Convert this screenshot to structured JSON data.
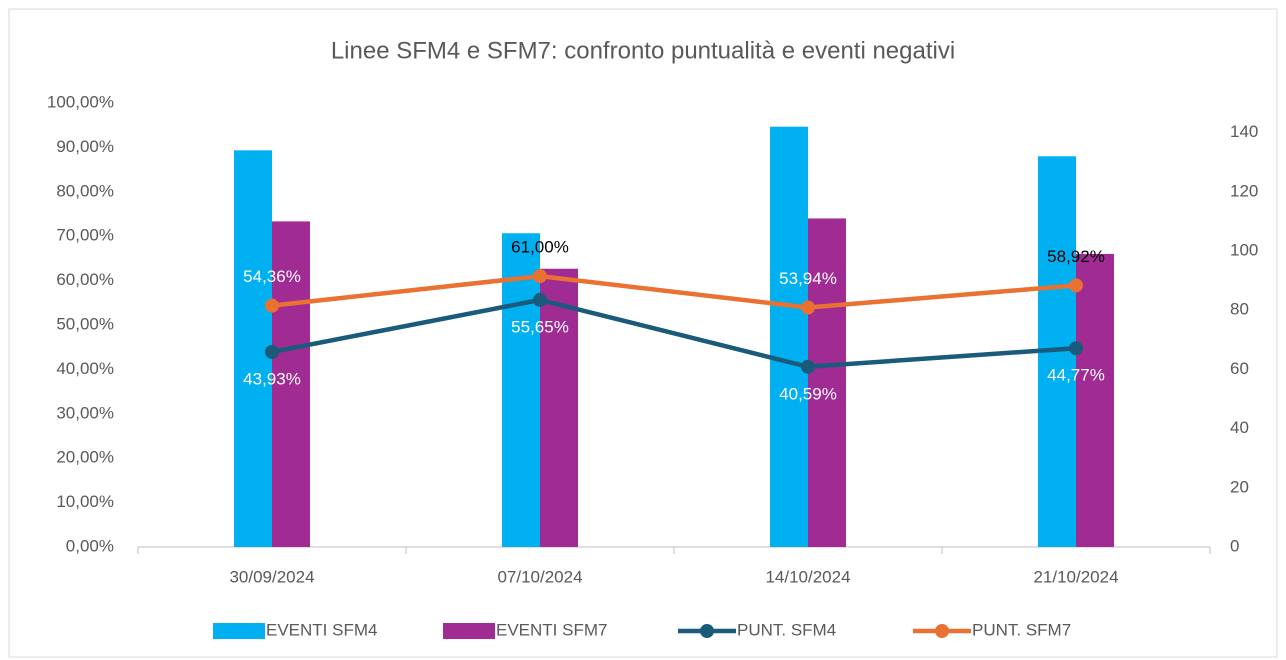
{
  "chart_data": {
    "type": "bar_line",
    "title": "Linee SFM4 e SFM7: confronto puntualità e eventi negativi",
    "categories": [
      "30/09/2024",
      "07/10/2024",
      "14/10/2024",
      "21/10/2024"
    ],
    "series": [
      {
        "name": "EVENTI SFM4",
        "type": "bar",
        "axis": "y2",
        "color": "#00b0f0",
        "values": [
          134,
          106,
          142,
          132
        ]
      },
      {
        "name": "EVENTI SFM7",
        "type": "bar",
        "axis": "y2",
        "color": "#a02b93",
        "values": [
          110,
          94,
          111,
          99
        ]
      },
      {
        "name": "PUNT. SFM4",
        "type": "line",
        "color": "#1a5a7a",
        "values": [
          43.93,
          55.65,
          40.59,
          44.77
        ],
        "value_labels": [
          "43,93%",
          "55,65%",
          "40,59%",
          "44,77%"
        ]
      },
      {
        "name": "PUNT. SFM7",
        "type": "line",
        "color": "#e97132",
        "values": [
          54.36,
          61.0,
          53.94,
          58.92
        ],
        "value_labels": [
          "54,36%",
          "61,00%",
          "53,94%",
          "58,92%"
        ]
      }
    ],
    "ylim": [
      0,
      100
    ],
    "yticks": [
      {
        "value": 0,
        "label": "0,00%"
      },
      {
        "value": 10,
        "label": "10,00%"
      },
      {
        "value": 20,
        "label": "20,00%"
      },
      {
        "value": 30,
        "label": "30,00%"
      },
      {
        "value": 40,
        "label": "40,00%"
      },
      {
        "value": 50,
        "label": "50,00%"
      },
      {
        "value": 60,
        "label": "60,00%"
      },
      {
        "value": 70,
        "label": "70,00%"
      },
      {
        "value": 80,
        "label": "80,00%"
      },
      {
        "value": 90,
        "label": "90,00%"
      },
      {
        "value": 100,
        "label": "100,00%"
      }
    ],
    "y2lim": [
      0,
      150
    ],
    "y2ticks": [
      0,
      20,
      40,
      60,
      80,
      100,
      120,
      140
    ],
    "grid": false,
    "legend": "bottom"
  }
}
